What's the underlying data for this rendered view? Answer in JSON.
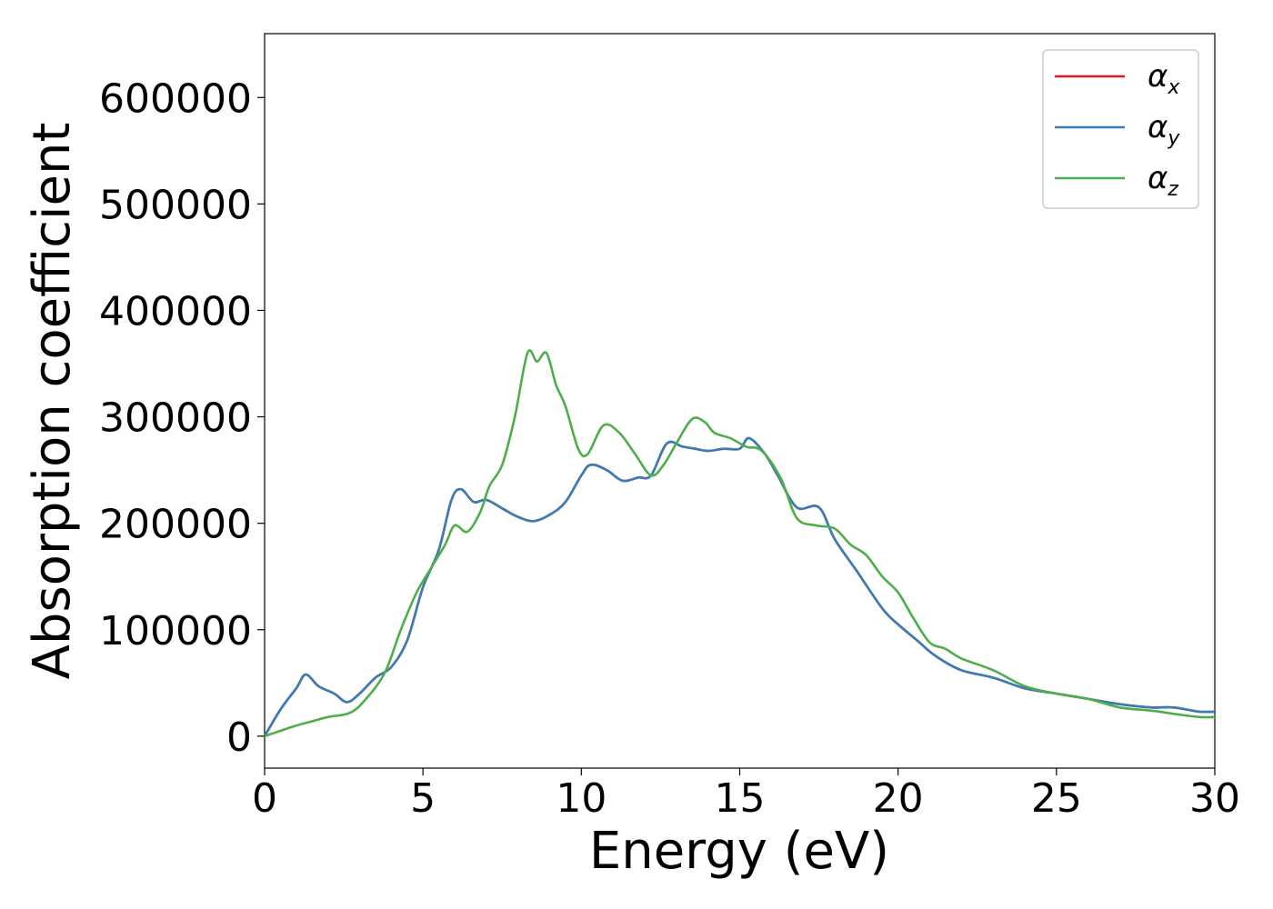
{
  "chart_data": {
    "type": "line",
    "xlabel": "Energy (eV)",
    "ylabel": "Absorption coefficient",
    "xlim": [
      0,
      30
    ],
    "ylim": [
      -30000,
      660000
    ],
    "xticks": [
      0,
      5,
      10,
      15,
      20,
      25,
      30
    ],
    "yticks": [
      0,
      100000,
      200000,
      300000,
      400000,
      500000,
      600000
    ],
    "grid": false,
    "legend_placement": "top-right",
    "series": [
      {
        "name": "α",
        "sub": "x",
        "color": "#e41a1c",
        "x": [
          0,
          0.5,
          1.0,
          1.3,
          1.7,
          2.2,
          2.6,
          3.0,
          3.5,
          4.0,
          4.5,
          5.0,
          5.5,
          5.9,
          6.2,
          6.6,
          7.0,
          7.5,
          8.0,
          8.5,
          9.0,
          9.5,
          10.0,
          10.3,
          10.8,
          11.3,
          11.8,
          12.2,
          12.7,
          13.2,
          13.6,
          14.0,
          14.5,
          15.0,
          15.3,
          15.8,
          16.2,
          16.8,
          17.5,
          18.0,
          18.7,
          19.5,
          20.0,
          20.6,
          21.2,
          22.0,
          23.0,
          24.0,
          25.0,
          26.0,
          27.0,
          28.0,
          28.7,
          29.5,
          30.0
        ],
        "y": [
          0,
          25000,
          45000,
          58000,
          47000,
          40000,
          32000,
          40000,
          55000,
          65000,
          90000,
          140000,
          175000,
          222000,
          232000,
          220000,
          222000,
          214000,
          206000,
          202000,
          208000,
          220000,
          245000,
          255000,
          250000,
          240000,
          243000,
          245000,
          275000,
          272000,
          270000,
          268000,
          270000,
          270000,
          280000,
          265000,
          245000,
          215000,
          215000,
          185000,
          155000,
          120000,
          105000,
          90000,
          75000,
          62000,
          55000,
          45000,
          40000,
          35000,
          30000,
          27000,
          27000,
          23000,
          23000
        ]
      },
      {
        "name": "α",
        "sub": "y",
        "color": "#377eb8",
        "x": [
          0,
          0.5,
          1.0,
          1.3,
          1.7,
          2.2,
          2.6,
          3.0,
          3.5,
          4.0,
          4.5,
          5.0,
          5.5,
          5.9,
          6.2,
          6.6,
          7.0,
          7.5,
          8.0,
          8.5,
          9.0,
          9.5,
          10.0,
          10.3,
          10.8,
          11.3,
          11.8,
          12.2,
          12.7,
          13.2,
          13.6,
          14.0,
          14.5,
          15.0,
          15.3,
          15.8,
          16.2,
          16.8,
          17.5,
          18.0,
          18.7,
          19.5,
          20.0,
          20.6,
          21.2,
          22.0,
          23.0,
          24.0,
          25.0,
          26.0,
          27.0,
          28.0,
          28.7,
          29.5,
          30.0
        ],
        "y": [
          0,
          25000,
          45000,
          58000,
          47000,
          40000,
          32000,
          40000,
          55000,
          65000,
          90000,
          140000,
          175000,
          222000,
          232000,
          220000,
          222000,
          214000,
          206000,
          202000,
          208000,
          220000,
          245000,
          255000,
          250000,
          240000,
          243000,
          245000,
          275000,
          272000,
          270000,
          268000,
          270000,
          270000,
          280000,
          265000,
          245000,
          215000,
          215000,
          185000,
          155000,
          120000,
          105000,
          90000,
          75000,
          62000,
          55000,
          45000,
          40000,
          35000,
          30000,
          27000,
          27000,
          23000,
          23000
        ]
      },
      {
        "name": "α",
        "sub": "z",
        "color": "#4daf4a",
        "x": [
          0,
          0.5,
          1.0,
          1.5,
          2.0,
          2.7,
          3.2,
          3.8,
          4.3,
          4.8,
          5.3,
          5.7,
          6.0,
          6.4,
          6.8,
          7.1,
          7.5,
          7.9,
          8.3,
          8.6,
          8.9,
          9.2,
          9.5,
          9.9,
          10.2,
          10.7,
          11.2,
          11.7,
          12.2,
          12.6,
          13.0,
          13.5,
          13.9,
          14.2,
          14.7,
          15.2,
          15.7,
          16.3,
          16.8,
          17.4,
          18.0,
          18.5,
          19.0,
          19.5,
          20.0,
          20.5,
          21.0,
          21.5,
          22.0,
          23.0,
          24.0,
          25.0,
          26.0,
          27.0,
          28.0,
          28.7,
          29.5,
          30.0
        ],
        "y": [
          0,
          5000,
          10000,
          14000,
          18000,
          22000,
          35000,
          60000,
          100000,
          135000,
          160000,
          180000,
          198000,
          192000,
          210000,
          235000,
          255000,
          300000,
          360000,
          352000,
          360000,
          330000,
          310000,
          270000,
          265000,
          292000,
          285000,
          265000,
          245000,
          255000,
          275000,
          298000,
          295000,
          285000,
          280000,
          272000,
          268000,
          242000,
          205000,
          198000,
          195000,
          180000,
          170000,
          150000,
          135000,
          110000,
          88000,
          82000,
          73000,
          62000,
          47000,
          40000,
          35000,
          27000,
          24000,
          21000,
          18000,
          18000
        ]
      }
    ]
  }
}
